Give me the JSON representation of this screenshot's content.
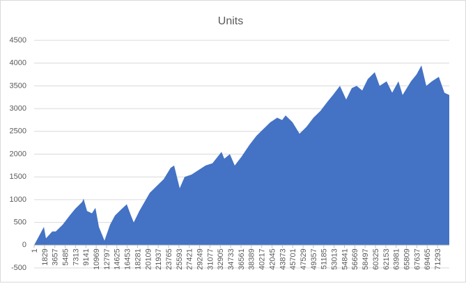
{
  "chart_data": {
    "type": "area",
    "title": "Units",
    "color": "#4472c4",
    "grid": true,
    "x": [
      1,
      1724,
      2094,
      3202,
      3817,
      5048,
      6279,
      7264,
      8495,
      8742,
      9357,
      10218,
      10834,
      11449,
      12434,
      13419,
      14281,
      15512,
      16373,
      17112,
      17604,
      18589,
      20435,
      21667,
      22898,
      24129,
      24744,
      25729,
      26591,
      27822,
      29053,
      30284,
      31515,
      33115,
      33608,
      34592,
      35454,
      36685,
      38039,
      39270,
      40501,
      41732,
      42963,
      43825,
      44441,
      45672,
      46903,
      48134,
      49365,
      50596,
      51827,
      52812,
      54043,
      55151,
      56135,
      56997,
      57982,
      58967,
      60198,
      61060,
      62291,
      63275,
      64383,
      65122,
      66599,
      67584,
      68446,
      69308,
      70293,
      71524,
      72509,
      73370
    ],
    "values": [
      0,
      400,
      150,
      300,
      300,
      450,
      650,
      800,
      950,
      1020,
      750,
      700,
      820,
      400,
      100,
      450,
      650,
      800,
      900,
      650,
      500,
      750,
      1150,
      1300,
      1450,
      1700,
      1750,
      1250,
      1500,
      1550,
      1650,
      1750,
      1800,
      2050,
      1900,
      2000,
      1750,
      1950,
      2200,
      2400,
      2550,
      2700,
      2800,
      2750,
      2850,
      2700,
      2450,
      2600,
      2800,
      2950,
      3150,
      3300,
      3500,
      3200,
      3450,
      3500,
      3400,
      3650,
      3800,
      3500,
      3600,
      3350,
      3600,
      3300,
      3600,
      3750,
      3950,
      3500,
      3600,
      3700,
      3350,
      3300
    ],
    "xlim": [
      1,
      73370
    ],
    "xticks": [
      1,
      1829,
      3657,
      5485,
      7313,
      9141,
      10969,
      12797,
      14625,
      16453,
      18281,
      20109,
      21937,
      23765,
      25593,
      27421,
      29249,
      31077,
      32905,
      34733,
      36561,
      38389,
      40217,
      42045,
      43873,
      45701,
      47529,
      49357,
      51185,
      53013,
      54841,
      56669,
      58497,
      60325,
      62153,
      63981,
      65809,
      67637,
      69465,
      71293
    ],
    "ylim": [
      -500,
      4500
    ],
    "yticks": [
      -500,
      0,
      500,
      1000,
      1500,
      2000,
      2500,
      3000,
      3500,
      4000,
      4500
    ]
  }
}
